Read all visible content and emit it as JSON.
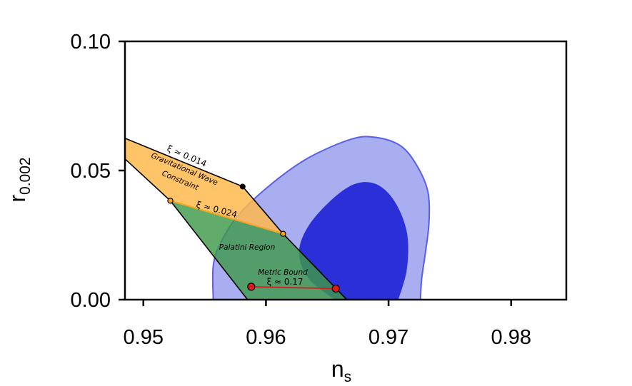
{
  "chart_data": {
    "type": "area",
    "title": "",
    "xlabel_main": "n",
    "xlabel_sub": "s",
    "ylabel_main": "r",
    "ylabel_sub": "0.002",
    "xlim": [
      0.9485,
      0.9845
    ],
    "ylim": [
      0.0,
      0.1
    ],
    "x_ticks": [
      0.95,
      0.96,
      0.97,
      0.98
    ],
    "x_tick_labels": [
      "0.95",
      "0.96",
      "0.97",
      "0.98"
    ],
    "y_ticks": [
      0.0,
      0.05,
      0.1
    ],
    "y_tick_labels": [
      "0.00",
      "0.05",
      "0.10"
    ],
    "grid": false,
    "colors": {
      "contour_outer": "#a9aef0",
      "contour_outer_edge": "#5a5ee8",
      "contour_inner": "#2b2fd8",
      "gw_region": "#ffb84d",
      "palatini_region": "#3e9a4a",
      "metric_line": "#d62020",
      "marker_red": "#e01a1a",
      "marker_orange": "#f5a623"
    },
    "contours": [
      {
        "level": "outer",
        "points": [
          [
            0.9557,
            0.0
          ],
          [
            0.9557,
            0.013
          ],
          [
            0.9563,
            0.022
          ],
          [
            0.9578,
            0.033
          ],
          [
            0.9605,
            0.045
          ],
          [
            0.9635,
            0.055
          ],
          [
            0.967,
            0.0622
          ],
          [
            0.969,
            0.0628
          ],
          [
            0.971,
            0.0595
          ],
          [
            0.9723,
            0.052
          ],
          [
            0.9732,
            0.042
          ],
          [
            0.9733,
            0.03
          ],
          [
            0.973,
            0.018
          ],
          [
            0.9727,
            0.008
          ],
          [
            0.9726,
            0.0
          ]
        ]
      },
      {
        "level": "inner",
        "points": [
          [
            0.9656,
            0.0
          ],
          [
            0.9635,
            0.008
          ],
          [
            0.9627,
            0.018
          ],
          [
            0.9634,
            0.028
          ],
          [
            0.9652,
            0.038
          ],
          [
            0.9672,
            0.0447
          ],
          [
            0.969,
            0.0447
          ],
          [
            0.9705,
            0.038
          ],
          [
            0.9715,
            0.026
          ],
          [
            0.9715,
            0.012
          ],
          [
            0.9708,
            0.0
          ]
        ]
      }
    ],
    "regions": [
      {
        "name": "Gravitational Wave Constraint",
        "points": [
          [
            0.9485,
            0.0625
          ],
          [
            0.9581,
            0.0438
          ],
          [
            0.9614,
            0.0255
          ],
          [
            0.9522,
            0.0383
          ],
          [
            0.9485,
            0.0545
          ]
        ]
      },
      {
        "name": "Palatini Region",
        "points": [
          [
            0.9522,
            0.0383
          ],
          [
            0.9614,
            0.0255
          ],
          [
            0.9666,
            0.0
          ],
          [
            0.9585,
            0.0
          ]
        ]
      }
    ],
    "metric_bound": {
      "x": [
        0.9588,
        0.9657
      ],
      "y": [
        0.005,
        0.0043
      ]
    },
    "markers": [
      {
        "x": 0.9581,
        "y": 0.0438,
        "kind": "black"
      },
      {
        "x": 0.9522,
        "y": 0.0383,
        "kind": "orange"
      },
      {
        "x": 0.9614,
        "y": 0.0255,
        "kind": "orange"
      },
      {
        "x": 0.9588,
        "y": 0.005,
        "kind": "red"
      },
      {
        "x": 0.9657,
        "y": 0.0043,
        "kind": "red"
      }
    ],
    "annotations": {
      "xi_top": "ξ ≈ 0.014",
      "gw_line1": "Gravitational Wave",
      "gw_line2": "Constraint",
      "xi_mid": "ξ ≈ 0.024",
      "palatini": "Palatini Region",
      "metric": "Metric Bound",
      "xi_low": "ξ ≈ 0.17"
    }
  }
}
